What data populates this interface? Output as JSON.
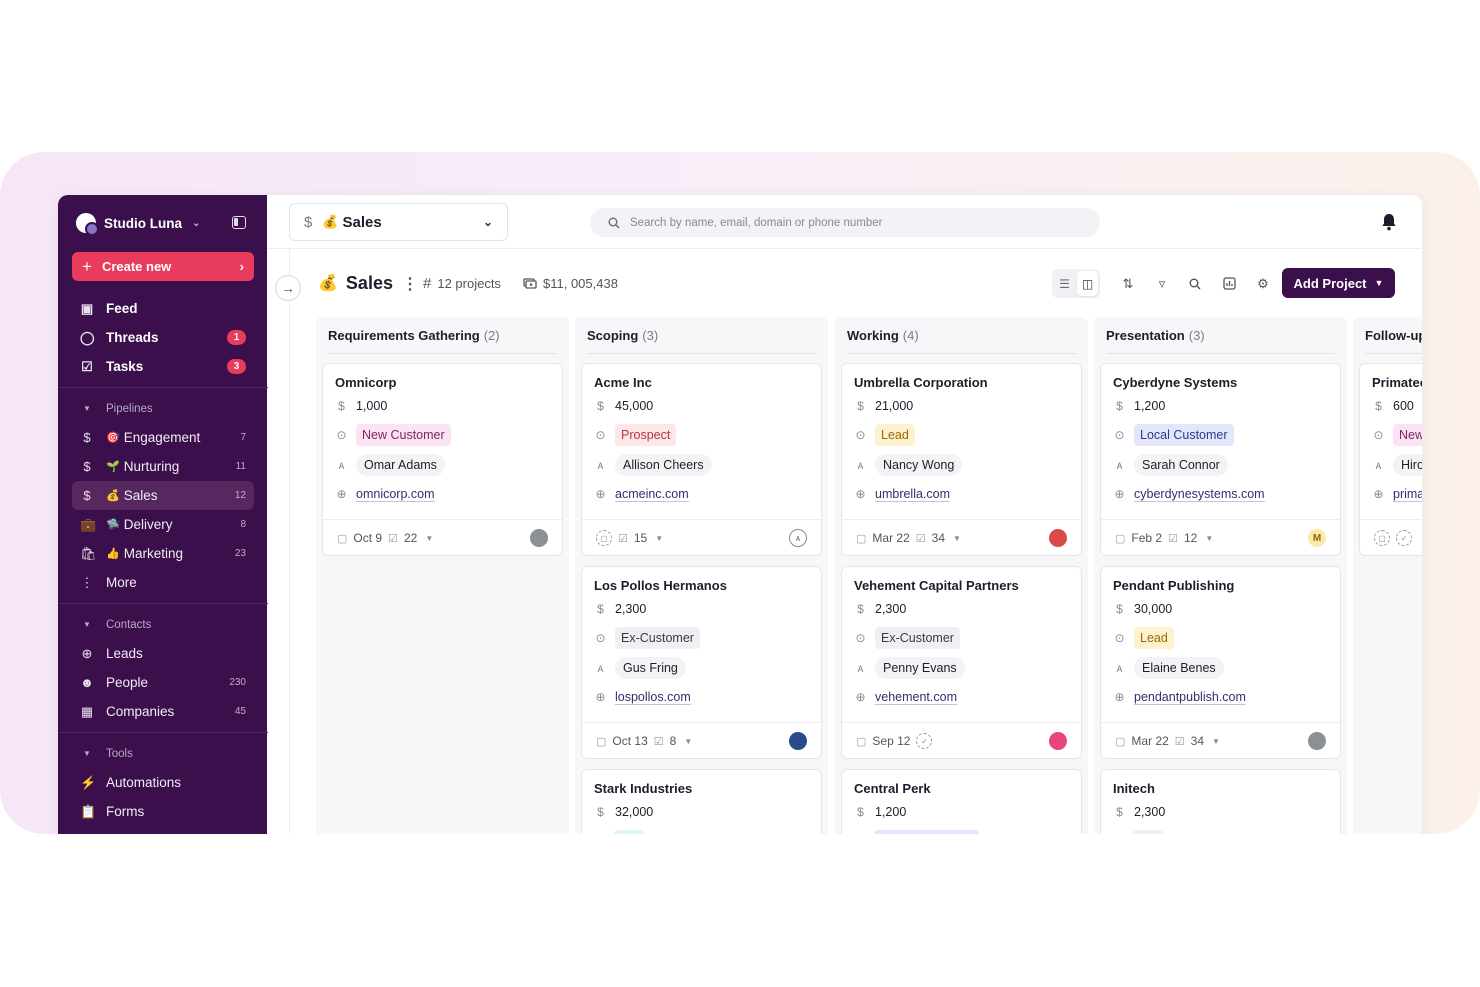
{
  "sidebar": {
    "workspace": "Studio Luna",
    "create_label": "Create new",
    "top_items": [
      {
        "label": "Feed",
        "icon": "inbox-icon"
      },
      {
        "label": "Threads",
        "icon": "chat-icon",
        "badge": "1"
      },
      {
        "label": "Tasks",
        "icon": "checkbox-icon",
        "badge": "3"
      }
    ],
    "pipelines_label": "Pipelines",
    "pipelines": [
      {
        "emoji": "🎯",
        "label": "Engagement",
        "count": "7"
      },
      {
        "emoji": "🌱",
        "label": "Nurturing",
        "count": "11"
      },
      {
        "emoji": "💰",
        "label": "Sales",
        "count": "12"
      },
      {
        "emoji": "🛸",
        "label": "Delivery",
        "count": "8"
      },
      {
        "emoji": "👍",
        "label": "Marketing",
        "count": "23"
      }
    ],
    "more_label": "More",
    "contacts_label": "Contacts",
    "contacts": [
      {
        "label": "Leads",
        "count": ""
      },
      {
        "label": "People",
        "count": "230"
      },
      {
        "label": "Companies",
        "count": "45"
      }
    ],
    "tools_label": "Tools",
    "tools": [
      {
        "label": "Automations"
      },
      {
        "label": "Forms"
      }
    ]
  },
  "topbar": {
    "pipeline_emoji": "💰",
    "pipeline_name": "Sales",
    "search_placeholder": "Search by name, email, domain or phone number"
  },
  "header": {
    "title_emoji": "💰",
    "title": "Sales",
    "projects": "12 projects",
    "amount": "$11, 005,438",
    "add_label": "Add Project"
  },
  "columns": [
    {
      "name": "Requirements Gathering",
      "count": "(2)",
      "cards": [
        {
          "title": "Omnicorp",
          "value": "1,000",
          "status": "New Customer",
          "status_style": "pink",
          "person": "Omar Adams",
          "domain": "omnicorp.com",
          "date": "Oct 9",
          "tasks": "22",
          "avatar": "gray"
        }
      ]
    },
    {
      "name": "Scoping",
      "count": "(3)",
      "cards": [
        {
          "title": "Acme Inc",
          "value": "45,000",
          "status": "Prospect",
          "status_style": "rose",
          "person": "Allison Cheers",
          "domain": "acmeinc.com",
          "date": "",
          "tasks": "15",
          "avatar": "empty"
        },
        {
          "title": "Los Pollos Hermanos",
          "value": "2,300",
          "status": "Ex-Customer",
          "status_style": "gray",
          "person": "Gus Fring",
          "domain": "lospollos.com",
          "date": "Oct 13",
          "tasks": "8",
          "avatar": "blue"
        },
        {
          "title": "Stark Industries",
          "value": "32,000"
        }
      ]
    },
    {
      "name": "Working",
      "count": "(4)",
      "cards": [
        {
          "title": "Umbrella Corporation",
          "value": "21,000",
          "status": "Lead",
          "status_style": "yellow",
          "person": "Nancy Wong",
          "domain": "umbrella.com",
          "date": "Mar 22",
          "tasks": "34",
          "avatar": "red"
        },
        {
          "title": "Vehement Capital Partners",
          "value": "2,300",
          "status": "Ex-Customer",
          "status_style": "gray",
          "person": "Penny Evans",
          "domain": "vehement.com",
          "date": "Sep 12",
          "tasks": "",
          "avatar": "pink"
        },
        {
          "title": "Central Perk",
          "value": "1,200"
        }
      ]
    },
    {
      "name": "Presentation",
      "count": "(3)",
      "cards": [
        {
          "title": "Cyberdyne Systems",
          "value": "1,200",
          "status": "Local Customer",
          "status_style": "lavender",
          "person": "Sarah Connor",
          "domain": "cyberdynesystems.com",
          "date": "Feb 2",
          "tasks": "12",
          "avatar": "M"
        },
        {
          "title": "Pendant Publishing",
          "value": "30,000",
          "status": "Lead",
          "status_style": "yellow",
          "person": "Elaine Benes",
          "domain": "pendantpublish.com",
          "date": "Mar 22",
          "tasks": "34",
          "avatar": "gray"
        },
        {
          "title": "Initech",
          "value": "2,300"
        }
      ]
    },
    {
      "name": "Follow-up",
      "count": "",
      "cards": [
        {
          "title": "Primatech",
          "value": "600",
          "status": "New",
          "status_style": "pink",
          "person": "Hiro",
          "domain": "prima",
          "date": "",
          "tasks": "",
          "avatar": ""
        }
      ]
    }
  ],
  "colors": {
    "sidebar_bg": "#3a0f4c",
    "accent_red": "#e93c5c",
    "primary": "#3a0f4c"
  }
}
